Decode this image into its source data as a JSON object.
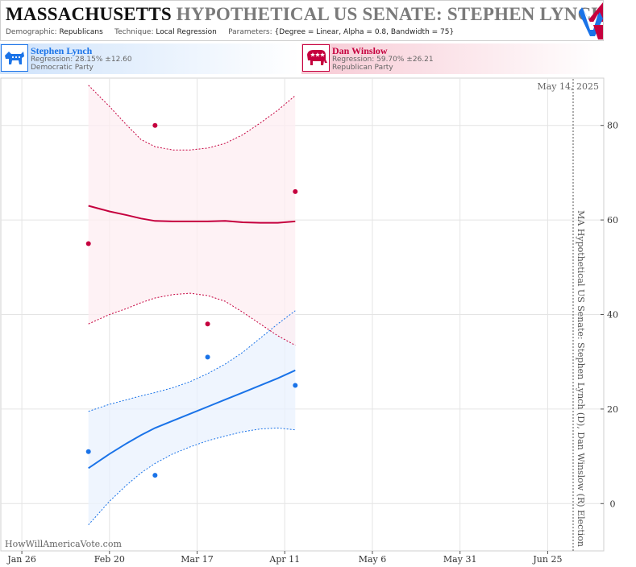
{
  "header": {
    "title_state": "MASSACHUSETTS",
    "title_rest": "HYPOTHETICAL US SENATE: STEPHEN LYNCH",
    "demographic_label": "Demographic:",
    "demographic": "Republicans",
    "technique_label": "Technique:",
    "technique": "Local Regression",
    "parameters_label": "Parameters:",
    "parameters": "{Degree = Linear, Alpha = 0.8, Bandwidth = 75}"
  },
  "candidates": [
    {
      "name": "Stephen Lynch",
      "regression": "Regression: 28.15% ±12.60",
      "party": "Democratic Party",
      "color": "#1a73e8",
      "icon": "donkey-icon"
    },
    {
      "name": "Dan Winslow",
      "regression": "Regression: 59.70% ±26.21",
      "party": "Republican Party",
      "color": "#c5003e",
      "icon": "elephant-icon"
    }
  ],
  "chart_data": {
    "type": "scatter",
    "date_label": "May 14, 2025",
    "side_label": "MA Hypothetical US Senate: Stephen Lynch (D), Dan Winslow (R) Election",
    "watermark": "HowWillAmericaVote.com",
    "x_ticks": [
      "Jan 26",
      "Feb 20",
      "Mar 17",
      "Apr 11",
      "May 6",
      "May 31",
      "Jun 25"
    ],
    "y_ticks": [
      0,
      20,
      40,
      60,
      80
    ],
    "xlim": [
      "Jan 20",
      "Jul 11"
    ],
    "ylim": [
      -10,
      90
    ],
    "series": [
      {
        "name": "Stephen Lynch",
        "color": "#1a73e8",
        "band_color": "#eaf2fd",
        "points": [
          [
            "Feb 14",
            11
          ],
          [
            "Mar 5",
            6
          ],
          [
            "Mar 20",
            31
          ],
          [
            "Apr 14",
            25
          ]
        ],
        "fit": [
          [
            "Feb 14",
            7.5
          ],
          [
            "Feb 20",
            10.5
          ],
          [
            "Feb 25",
            12.8
          ],
          [
            "Mar 1",
            14.5
          ],
          [
            "Mar 5",
            16
          ],
          [
            "Mar 10",
            17.5
          ],
          [
            "Mar 15",
            19
          ],
          [
            "Mar 20",
            20.5
          ],
          [
            "Mar 25",
            22
          ],
          [
            "Mar 30",
            23.5
          ],
          [
            "Apr 4",
            25
          ],
          [
            "Apr 9",
            26.5
          ],
          [
            "Apr 14",
            28.2
          ]
        ],
        "upper": [
          [
            "Feb 14",
            19.5
          ],
          [
            "Feb 20",
            21
          ],
          [
            "Feb 25",
            22
          ],
          [
            "Mar 1",
            22.8
          ],
          [
            "Mar 5",
            23.5
          ],
          [
            "Mar 10",
            24.5
          ],
          [
            "Mar 15",
            25.8
          ],
          [
            "Mar 20",
            27.5
          ],
          [
            "Mar 25",
            29.5
          ],
          [
            "Mar 30",
            32
          ],
          [
            "Apr 4",
            35
          ],
          [
            "Apr 9",
            38
          ],
          [
            "Apr 14",
            40.8
          ]
        ],
        "lower": [
          [
            "Feb 14",
            -4.5
          ],
          [
            "Feb 20",
            0.5
          ],
          [
            "Feb 25",
            4
          ],
          [
            "Mar 1",
            6.5
          ],
          [
            "Mar 5",
            8.5
          ],
          [
            "Mar 10",
            10.5
          ],
          [
            "Mar 15",
            12
          ],
          [
            "Mar 20",
            13.3
          ],
          [
            "Mar 25",
            14.3
          ],
          [
            "Mar 30",
            15.2
          ],
          [
            "Apr 4",
            15.8
          ],
          [
            "Apr 9",
            16
          ],
          [
            "Apr 14",
            15.6
          ]
        ]
      },
      {
        "name": "Dan Winslow",
        "color": "#c5003e",
        "band_color": "#fdeef1",
        "points": [
          [
            "Feb 14",
            55
          ],
          [
            "Mar 5",
            80
          ],
          [
            "Mar 20",
            38
          ],
          [
            "Apr 14",
            66
          ]
        ],
        "fit": [
          [
            "Feb 14",
            63
          ],
          [
            "Feb 20",
            61.8
          ],
          [
            "Feb 25",
            61
          ],
          [
            "Mar 1",
            60.3
          ],
          [
            "Mar 5",
            59.8
          ],
          [
            "Mar 10",
            59.7
          ],
          [
            "Mar 15",
            59.7
          ],
          [
            "Mar 20",
            59.7
          ],
          [
            "Mar 25",
            59.8
          ],
          [
            "Mar 30",
            59.5
          ],
          [
            "Apr 4",
            59.4
          ],
          [
            "Apr 9",
            59.4
          ],
          [
            "Apr 14",
            59.7
          ]
        ],
        "upper": [
          [
            "Feb 14",
            88.5
          ],
          [
            "Feb 20",
            84
          ],
          [
            "Feb 25",
            80
          ],
          [
            "Mar 1",
            77
          ],
          [
            "Mar 5",
            75.5
          ],
          [
            "Mar 10",
            74.8
          ],
          [
            "Mar 15",
            74.8
          ],
          [
            "Mar 20",
            75.2
          ],
          [
            "Mar 25",
            76.2
          ],
          [
            "Mar 30",
            78
          ],
          [
            "Apr 4",
            80.5
          ],
          [
            "Apr 9",
            83.2
          ],
          [
            "Apr 14",
            86.3
          ]
        ],
        "lower": [
          [
            "Feb 14",
            38
          ],
          [
            "Feb 20",
            40
          ],
          [
            "Feb 25",
            41.3
          ],
          [
            "Mar 1",
            42.5
          ],
          [
            "Mar 5",
            43.5
          ],
          [
            "Mar 10",
            44.2
          ],
          [
            "Mar 15",
            44.5
          ],
          [
            "Mar 20",
            44
          ],
          [
            "Mar 25",
            42.8
          ],
          [
            "Mar 30",
            40.5
          ],
          [
            "Apr 4",
            38
          ],
          [
            "Apr 9",
            35.5
          ],
          [
            "Apr 14",
            33.5
          ]
        ]
      }
    ]
  }
}
